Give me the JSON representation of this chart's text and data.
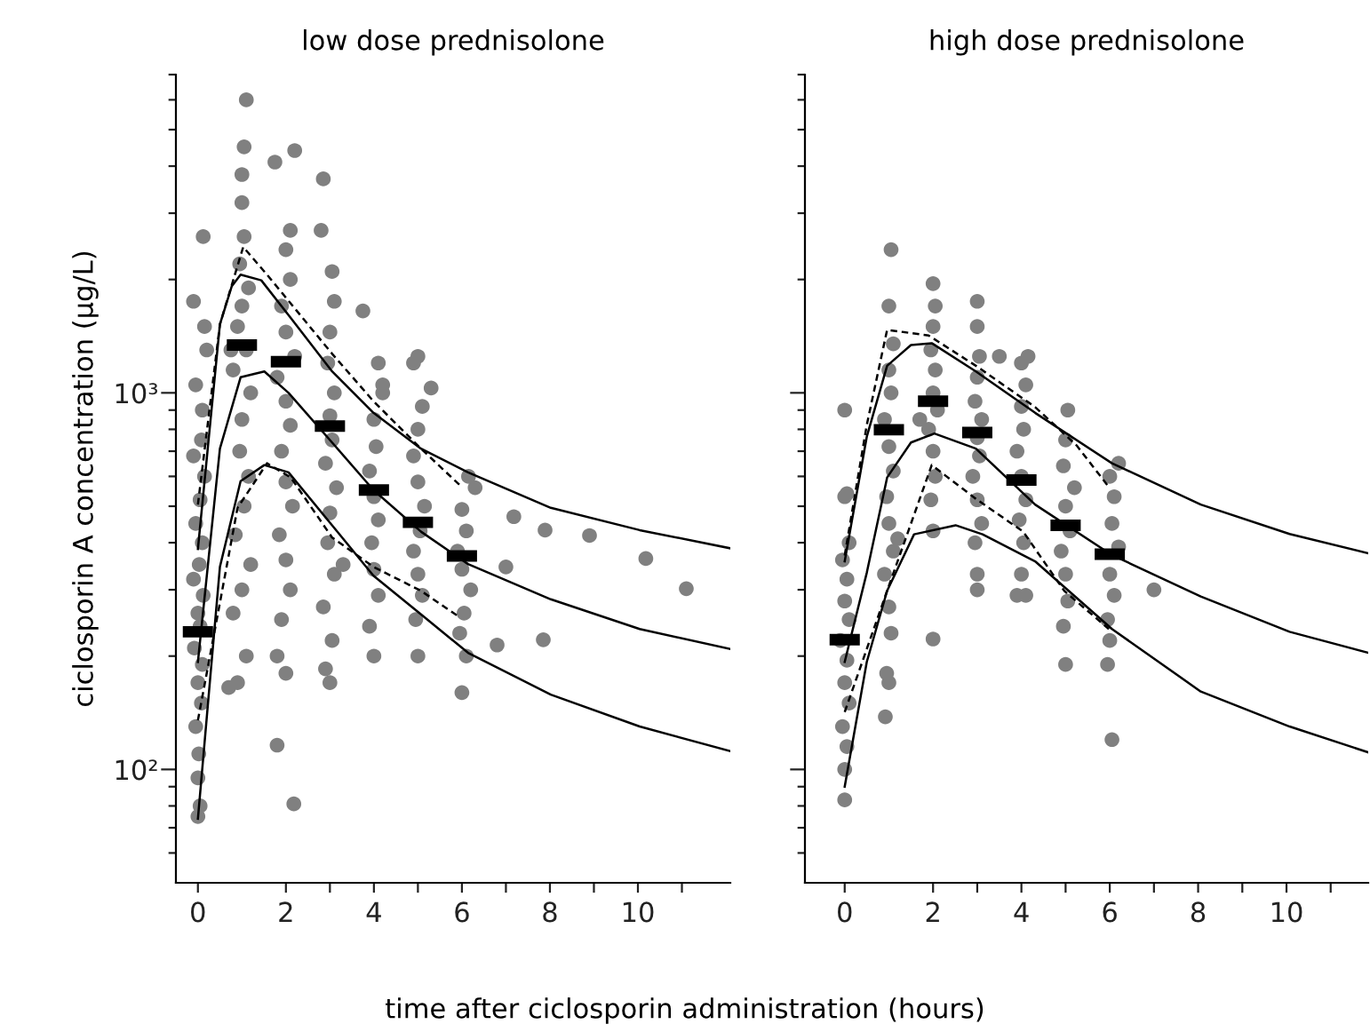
{
  "chart_data": [
    {
      "type": "scatter",
      "title": "low dose prednisolone",
      "xlabel": "time after ciclosporin administration (hours)",
      "ylabel": "ciclosporin A concentration (µg/L)",
      "log": "y",
      "grid": false,
      "xlim": [
        -0.5,
        12.1
      ],
      "ylim": [
        50,
        7000
      ],
      "xticks": [
        0,
        2,
        {
          "value": 3,
          "label": null
        },
        4,
        {
          "value": 5,
          "label": null
        },
        6,
        {
          "value": 7,
          "label": null
        },
        8,
        {
          "value": 9,
          "label": null
        },
        10,
        {
          "value": 11,
          "label": null
        }
      ],
      "yticks": [
        {
          "value": 60,
          "label": null
        },
        {
          "value": 70,
          "label": null
        },
        {
          "value": 80,
          "label": null
        },
        {
          "value": 90,
          "label": null
        },
        {
          "value": 100,
          "label": "10²"
        },
        {
          "value": 200,
          "label": null
        },
        {
          "value": 300,
          "label": null
        },
        {
          "value": 400,
          "label": null
        },
        {
          "value": 500,
          "label": null
        },
        {
          "value": 600,
          "label": null
        },
        {
          "value": 700,
          "label": null
        },
        {
          "value": 800,
          "label": null
        },
        {
          "value": 900,
          "label": null
        },
        {
          "value": 1000,
          "label": "10³"
        },
        {
          "value": 2000,
          "label": null
        },
        {
          "value": 3000,
          "label": null
        },
        {
          "value": 4000,
          "label": null
        },
        {
          "value": 5000,
          "label": null
        },
        {
          "value": 6000,
          "label": null
        },
        {
          "value": 7000,
          "label": null
        }
      ],
      "series": [
        {
          "type": "scatter",
          "marker": "circle",
          "color": "#808080",
          "x": [
            0,
            0.05,
            0,
            0.02,
            -0.05,
            0.08,
            0,
            0.1,
            -0.08,
            0.05,
            0,
            0.12,
            -0.1,
            0.03,
            0.1,
            -0.05,
            0.05,
            0.15,
            -0.1,
            0.08,
            0.1,
            -0.05,
            0.2,
            -0.1,
            0.12,
            0.15,
            0.9,
            1.1,
            0.8,
            1.0,
            1.2,
            0.85,
            1.05,
            1.15,
            0.95,
            1.0,
            1.2,
            0.8,
            1.1,
            0.9,
            1.0,
            1.15,
            0.95,
            1.05,
            1.0,
            1.0,
            1.05,
            1.1,
            0.7,
            0.75,
            1.8,
            2.0,
            1.8,
            2.18,
            1.9,
            2.1,
            2.0,
            1.85,
            2.15,
            2.0,
            1.9,
            2.1,
            2.0,
            1.8,
            2.2,
            2.0,
            1.9,
            2.1,
            2.0,
            2.1,
            1.75,
            2.2,
            3.0,
            2.9,
            3.05,
            2.85,
            3.1,
            2.95,
            3.0,
            3.15,
            2.9,
            3.05,
            3.0,
            3.1,
            2.95,
            3.0,
            3.1,
            3.05,
            2.8,
            2.85,
            3.3,
            4.0,
            3.9,
            4.1,
            4.0,
            3.95,
            4.1,
            4.0,
            3.9,
            4.05,
            4.0,
            4.2,
            4.1,
            3.75,
            4.2,
            5.0,
            4.95,
            5.1,
            5.0,
            4.9,
            5.05,
            5.15,
            5.0,
            4.9,
            5.0,
            5.1,
            5.3,
            4.9,
            5.0,
            6.0,
            6.1,
            5.95,
            6.05,
            6.2,
            6.0,
            5.9,
            6.1,
            6.0,
            6.3,
            6.15,
            6.8,
            7.0,
            7.18,
            7.85,
            7.89,
            8.9,
            10.18,
            11.1
          ],
          "values": [
            75,
            80,
            95,
            110,
            130,
            150,
            170,
            190,
            210,
            240,
            260,
            290,
            320,
            350,
            400,
            450,
            520,
            600,
            680,
            750,
            900,
            1050,
            1300,
            1750,
            2600,
            1500,
            170,
            200,
            260,
            300,
            350,
            420,
            500,
            600,
            700,
            850,
            1000,
            1150,
            1300,
            1500,
            1700,
            1900,
            2200,
            2600,
            3200,
            3800,
            4500,
            6000,
            165,
            1300,
            200,
            180,
            116,
            81,
            250,
            300,
            360,
            420,
            500,
            580,
            700,
            820,
            950,
            1100,
            1250,
            1450,
            1700,
            2000,
            2400,
            2700,
            4100,
            4400,
            170,
            185,
            220,
            270,
            330,
            400,
            480,
            560,
            650,
            750,
            870,
            1000,
            1200,
            1450,
            1750,
            2100,
            2700,
            3700,
            350,
            200,
            240,
            290,
            340,
            400,
            460,
            530,
            620,
            720,
            850,
            1000,
            1200,
            1650,
            1050,
            200,
            250,
            290,
            330,
            380,
            430,
            500,
            580,
            680,
            800,
            920,
            1030,
            1200,
            1250,
            160,
            200,
            230,
            260,
            300,
            340,
            380,
            430,
            490,
            560,
            600,
            214,
            345,
            469,
            221,
            432,
            418,
            363,
            302
          ]
        },
        {
          "marker": "square",
          "color": "#000000",
          "x": [
            0,
            1,
            2,
            3,
            4,
            5,
            6
          ],
          "values": [
            232,
            1340,
            1210,
            816,
            552,
            453,
            369
          ]
        },
        {
          "type": "line",
          "marker": "none",
          "line_style": "solid",
          "color": "#000000",
          "x": [
            0,
            0.5,
            0.77,
            0.97,
            1.44,
            2.11,
            3.05,
            3.99,
            5.07,
            6.14,
            8.02,
            10.04,
            12.08
          ],
          "values": [
            385,
            1520,
            1920,
            2060,
            1990,
            1580,
            1140,
            885,
            711,
            615,
            495,
            432,
            387
          ]
        },
        {
          "type": "line",
          "marker": "none",
          "line_style": "solid",
          "color": "#000000",
          "x": [
            0,
            0.5,
            0.97,
            1.51,
            2.06,
            3.05,
            3.99,
            5.07,
            6.14,
            8.02,
            10.04,
            12.08
          ],
          "values": [
            193,
            711,
            1100,
            1140,
            1000,
            738,
            552,
            428,
            351,
            283,
            236,
            209
          ]
        },
        {
          "type": "line",
          "marker": "none",
          "line_style": "solid",
          "color": "#000000",
          "x": [
            0,
            0.5,
            0.97,
            1.51,
            2.06,
            3.05,
            3.99,
            5.07,
            6.14,
            8.02,
            10.04,
            12.08
          ],
          "values": [
            74,
            345,
            583,
            643,
            615,
            445,
            327,
            258,
            204,
            158,
            130,
            112
          ]
        },
        {
          "type": "line",
          "marker": "none",
          "line_style": "dashed",
          "color": "#000000",
          "x": [
            0,
            0.5,
            1.03,
            1.57,
            3.05,
            3.99,
            5.07,
            6.0
          ],
          "values": [
            505,
            1520,
            2440,
            2060,
            1270,
            950,
            711,
            562
          ]
        },
        {
          "type": "line",
          "marker": "none",
          "line_style": "dashed",
          "color": "#000000",
          "x": [
            0,
            0.5,
            0.9,
            1.57,
            2.11,
            3.05,
            3.99,
            5.07,
            5.94
          ],
          "values": [
            135,
            277,
            495,
            650,
            596,
            413,
            345,
            298,
            254
          ]
        }
      ]
    },
    {
      "type": "scatter",
      "title": "high dose prednisolone",
      "log": "y",
      "grid": false,
      "tick_labels": "x",
      "xlim": [
        -0.9,
        11.85
      ],
      "ylim": [
        50,
        7000
      ],
      "xticks": [
        0,
        2,
        {
          "value": 3,
          "label": null
        },
        4,
        {
          "value": 5,
          "label": null
        },
        6,
        {
          "value": 7,
          "label": null
        },
        8,
        {
          "value": 9,
          "label": null
        },
        10,
        {
          "value": 11,
          "label": null
        }
      ],
      "yticks": [
        {
          "value": 60,
          "label": null
        },
        {
          "value": 70,
          "label": null
        },
        {
          "value": 80,
          "label": null
        },
        {
          "value": 90,
          "label": null
        },
        {
          "value": 100,
          "label": null
        },
        {
          "value": 200,
          "label": null
        },
        {
          "value": 300,
          "label": null
        },
        {
          "value": 400,
          "label": null
        },
        {
          "value": 500,
          "label": null
        },
        {
          "value": 600,
          "label": null
        },
        {
          "value": 700,
          "label": null
        },
        {
          "value": 800,
          "label": null
        },
        {
          "value": 900,
          "label": null
        },
        {
          "value": 1000,
          "label": null
        },
        {
          "value": 2000,
          "label": null
        },
        {
          "value": 3000,
          "label": null
        },
        {
          "value": 4000,
          "label": null
        },
        {
          "value": 5000,
          "label": null
        },
        {
          "value": 6000,
          "label": null
        },
        {
          "value": 7000,
          "label": null
        }
      ],
      "series": [
        {
          "type": "scatter",
          "marker": "circle",
          "color": "#808080",
          "x": [
            0,
            0.0,
            0.05,
            -0.05,
            0.1,
            0,
            0.05,
            -0.1,
            0.1,
            0,
            0.05,
            -0.05,
            0.1,
            0,
            0.05,
            0.0,
            0.92,
            1.0,
            0.95,
            1.05,
            1.0,
            0.9,
            1.1,
            1.0,
            0.95,
            1.1,
            1.0,
            0.9,
            1.05,
            1.0,
            1.1,
            1.0,
            1.05,
            1.2,
            2.0,
            2.0,
            1.95,
            2.05,
            2.0,
            1.9,
            2.1,
            2.0,
            2.05,
            1.95,
            2.0,
            2.05,
            2.0,
            1.7,
            3.0,
            3.0,
            2.95,
            3.1,
            3.0,
            2.9,
            3.05,
            3.0,
            3.1,
            2.95,
            3.0,
            3.05,
            3.0,
            3.0,
            3.5,
            3.9,
            4.1,
            4.0,
            4.05,
            3.95,
            4.1,
            4.0,
            3.9,
            4.05,
            4.0,
            4.1,
            4.0,
            4.15,
            5.0,
            4.95,
            5.05,
            5.0,
            4.9,
            5.1,
            5.0,
            5.2,
            4.95,
            5.0,
            5.05,
            6.05,
            5.95,
            6.0,
            5.95,
            6.1,
            6.0,
            6.2,
            6.05,
            6.1,
            6.0,
            6.2,
            7.0
          ],
          "values": [
            83,
            100,
            115,
            130,
            150,
            170,
            195,
            220,
            250,
            280,
            320,
            360,
            400,
            530,
            540,
            900,
            138,
            170,
            180,
            230,
            270,
            330,
            380,
            450,
            530,
            620,
            720,
            850,
            1000,
            1150,
            1350,
            1700,
            2400,
            410,
            222,
            430,
            520,
            600,
            700,
            800,
            900,
            1000,
            1150,
            1300,
            1500,
            1700,
            1950,
            850,
            300,
            330,
            400,
            450,
            520,
            600,
            680,
            760,
            850,
            950,
            1100,
            1250,
            1500,
            1750,
            1250,
            290,
            290,
            330,
            400,
            460,
            520,
            600,
            700,
            800,
            920,
            1050,
            1200,
            1250,
            190,
            240,
            280,
            330,
            380,
            430,
            500,
            560,
            640,
            750,
            900,
            120,
            190,
            220,
            250,
            290,
            330,
            390,
            450,
            530,
            600,
            650,
            300
          ]
        },
        {
          "marker": "square",
          "color": "#000000",
          "x": [
            0,
            1,
            2,
            3,
            4,
            5,
            6
          ],
          "values": [
            221,
            798,
            950,
            785,
            587,
            445,
            373
          ]
        },
        {
          "type": "line",
          "marker": "none",
          "line_style": "solid",
          "color": "#000000",
          "x": [
            0,
            0.5,
            0.96,
            1.5,
            1.97,
            2.97,
            4.31,
            6.05,
            8.06,
            10.07,
            11.85
          ],
          "values": [
            357,
            765,
            1180,
            1340,
            1355,
            1140,
            885,
            650,
            505,
            422,
            375
          ]
        },
        {
          "type": "line",
          "marker": "none",
          "line_style": "solid",
          "color": "#000000",
          "x": [
            0,
            0.5,
            0.96,
            1.5,
            2.03,
            2.97,
            4.31,
            6.05,
            8.06,
            10.07,
            11.85
          ],
          "values": [
            193,
            333,
            596,
            738,
            780,
            711,
            505,
            371,
            288,
            232,
            204
          ]
        },
        {
          "type": "line",
          "marker": "none",
          "line_style": "solid",
          "color": "#000000",
          "x": [
            0,
            0.5,
            0.96,
            1.57,
            2.51,
            3.12,
            4.31,
            6.05,
            8.06,
            10.07,
            11.85
          ],
          "values": [
            90,
            193,
            298,
            421,
            445,
            421,
            357,
            236,
            161,
            130,
            111
          ]
        },
        {
          "type": "line",
          "marker": "none",
          "line_style": "dashed",
          "color": "#000000",
          "x": [
            0,
            0.5,
            0.96,
            1.9,
            2.97,
            4.31,
            5.25,
            5.98
          ],
          "values": [
            370,
            822,
            1470,
            1420,
            1180,
            917,
            725,
            562
          ]
        },
        {
          "type": "line",
          "marker": "none",
          "line_style": "dashed",
          "color": "#000000",
          "x": [
            0,
            0.96,
            1.97,
            2.97,
            4.04,
            4.97,
            5.98
          ],
          "values": [
            142,
            298,
            643,
            523,
            428,
            298,
            236
          ]
        }
      ]
    }
  ]
}
